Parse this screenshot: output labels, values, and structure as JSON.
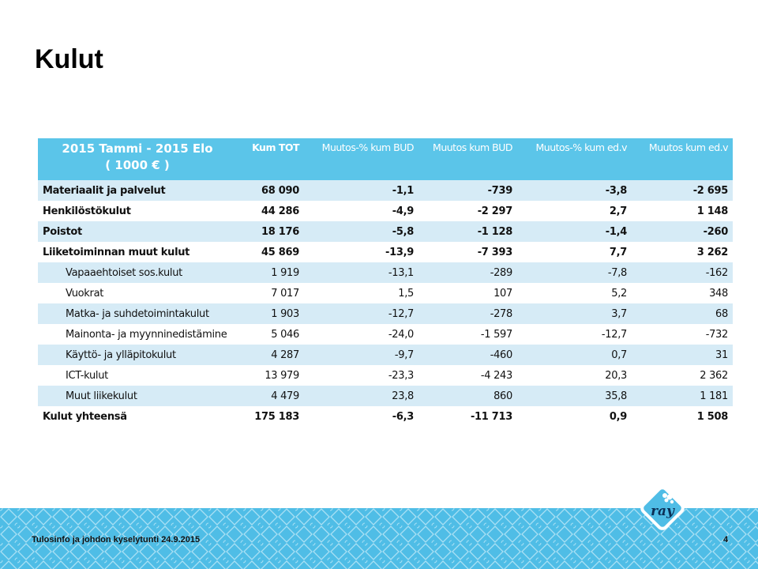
{
  "title": "Kulut",
  "table": {
    "header": {
      "label_line1": "2015 Tammi - 2015 Elo",
      "label_line2": "( 1000 € )",
      "columns": [
        "Kum TOT",
        "Muutos-% kum BUD",
        "Muutos kum BUD",
        "Muutos-% kum ed.v",
        "Muutos kum ed.v"
      ]
    },
    "rows": [
      {
        "label": "Materiaalit ja palvelut",
        "values": [
          "68 090",
          "-1,1",
          "-739",
          "-3,8",
          "-2 695"
        ]
      },
      {
        "label": "Henkilöstökulut",
        "values": [
          "44 286",
          "-4,9",
          "-2 297",
          "2,7",
          "1 148"
        ]
      },
      {
        "label": "Poistot",
        "values": [
          "18 176",
          "-5,8",
          "-1 128",
          "-1,4",
          "-260"
        ]
      },
      {
        "label": "Liiketoiminnan muut kulut",
        "values": [
          "45 869",
          "-13,9",
          "-7 393",
          "7,7",
          "3 262"
        ]
      },
      {
        "label": "Vapaaehtoiset sos.kulut",
        "values": [
          "1 919",
          "-13,1",
          "-289",
          "-7,8",
          "-162"
        ]
      },
      {
        "label": "Vuokrat",
        "values": [
          "7 017",
          "1,5",
          "107",
          "5,2",
          "348"
        ]
      },
      {
        "label": "Matka- ja suhdetoimintakulut",
        "values": [
          "1 903",
          "-12,7",
          "-278",
          "3,7",
          "68"
        ]
      },
      {
        "label": "Mainonta- ja myynninedistämine",
        "values": [
          "5 046",
          "-24,0",
          "-1 597",
          "-12,7",
          "-732"
        ]
      },
      {
        "label": "Käyttö- ja ylläpitokulut",
        "values": [
          "4 287",
          "-9,7",
          "-460",
          "0,7",
          "31"
        ]
      },
      {
        "label": "ICT-kulut",
        "values": [
          "13 979",
          "-23,3",
          "-4 243",
          "20,3",
          "2 362"
        ]
      },
      {
        "label": "Muut liikekulut",
        "values": [
          "4 479",
          "23,8",
          "860",
          "35,8",
          "1 181"
        ]
      },
      {
        "label": "Kulut yhteensä",
        "values": [
          "175 183",
          "-6,3",
          "-11 713",
          "0,9",
          "1 508"
        ]
      }
    ]
  },
  "footer": {
    "text": "Tulosinfo ja johdon kyselytunti 24.9.2015",
    "page": "4"
  },
  "logo": {
    "text": "ray"
  },
  "colors": {
    "header": "#5bc5e9",
    "alt_row": "#d6ebf6",
    "footer": "#4fbde6"
  }
}
